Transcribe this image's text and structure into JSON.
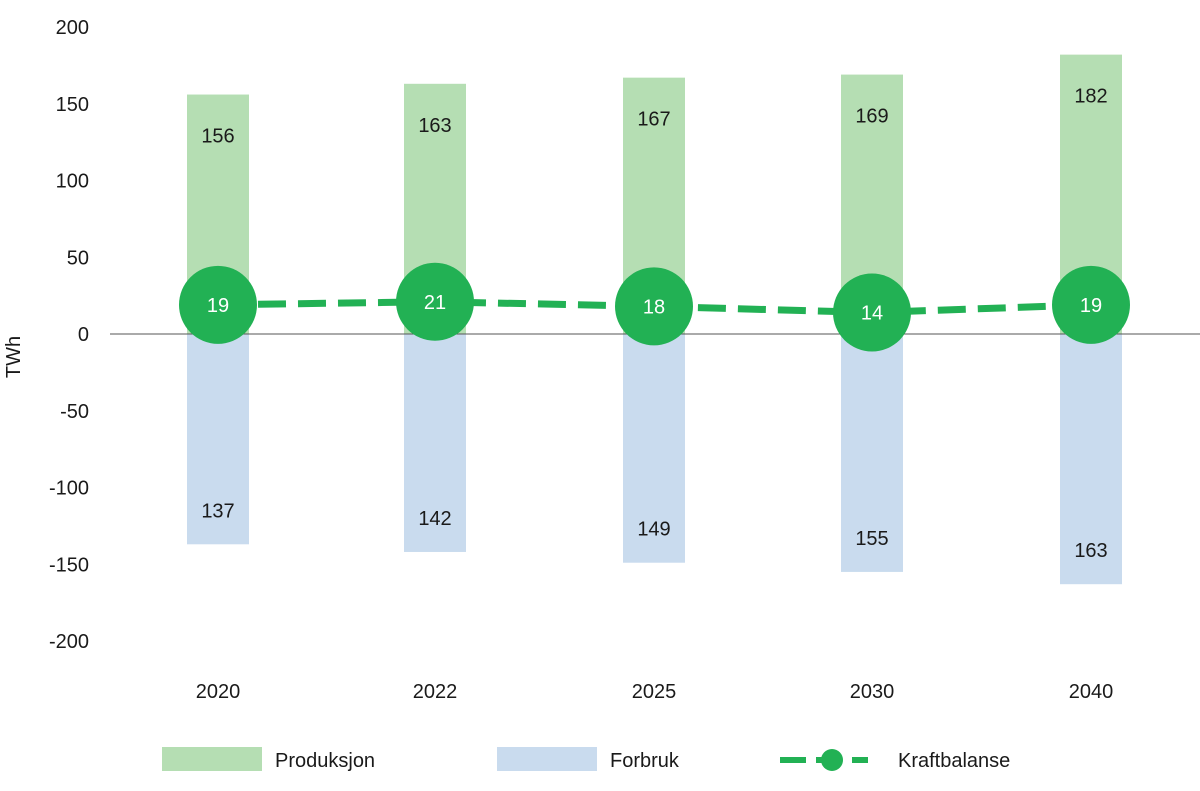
{
  "chart_data": {
    "type": "bar",
    "categories": [
      "2020",
      "2022",
      "2025",
      "2030",
      "2040"
    ],
    "series": [
      {
        "name": "Produksjon",
        "kind": "bar",
        "color": "#b5deb3",
        "values": [
          156,
          163,
          167,
          169,
          182
        ]
      },
      {
        "name": "Forbruk",
        "kind": "bar",
        "color": "#c9dbee",
        "values": [
          -137,
          -142,
          -149,
          -155,
          -163
        ],
        "labels": [
          "137",
          "142",
          "149",
          "155",
          "163"
        ]
      },
      {
        "name": "Kraftbalanse",
        "kind": "line",
        "style": "dashed",
        "marker": "circle",
        "color": "#22b154",
        "values": [
          19,
          21,
          18,
          14,
          19
        ]
      }
    ],
    "title": "",
    "xlabel": "",
    "ylabel": "TWh",
    "ylim": [
      -200,
      200
    ],
    "yticks": [
      "200",
      "150",
      "100",
      "50",
      "0",
      "-50",
      "-100",
      "-150",
      "-200"
    ],
    "grid": false,
    "legend_position": "bottom"
  }
}
